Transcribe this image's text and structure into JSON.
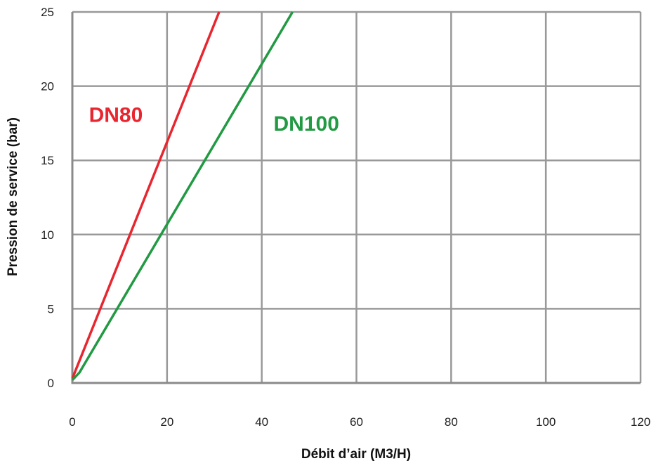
{
  "chart_data": {
    "type": "line",
    "title": "",
    "xlabel": "Débit d’air (M3/H)",
    "ylabel": "Pression de service (bar)",
    "xlim": [
      0,
      120
    ],
    "ylim": [
      0,
      25
    ],
    "xticks": [
      "0",
      "20",
      "40",
      "60",
      "80",
      "100",
      "120"
    ],
    "yticks": [
      "0",
      "5",
      "10",
      "15",
      "20",
      "25"
    ],
    "grid": true,
    "series": [
      {
        "name": "DN80",
        "color": "#e8262f",
        "x": [
          0,
          31
        ],
        "y": [
          0.3,
          25
        ],
        "label_at": [
          3.5,
          17.6
        ]
      },
      {
        "name": "DN100",
        "color": "#219a43",
        "x": [
          0,
          1.5,
          46.5
        ],
        "y": [
          0.2,
          0.7,
          25
        ],
        "label_at": [
          42.5,
          17.0
        ]
      }
    ]
  }
}
